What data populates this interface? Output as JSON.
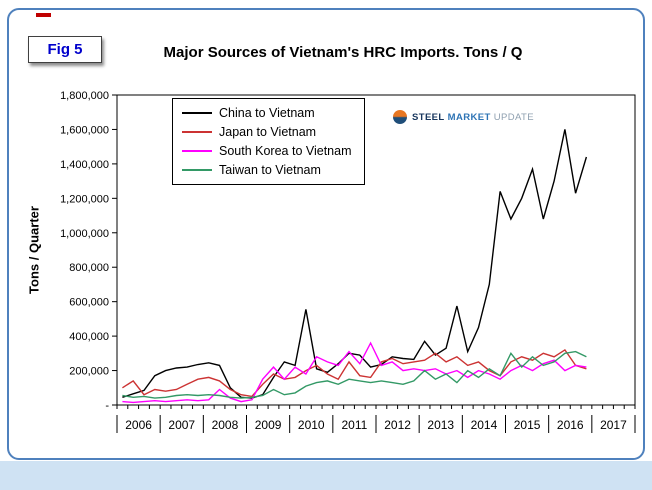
{
  "fig_label": "Fig 5",
  "title": "Major Sources of Vietnam's HRC Imports. Tons / Q",
  "logo": {
    "steel": "STEEL",
    "market": "MARKET",
    "update": "UPDATE"
  },
  "frame": {
    "border_color": "#4f81bd",
    "bottom_band_color": "#cfe2f3",
    "fig_label_color": "#0000cc",
    "red_dash_color": "#c00000"
  },
  "chart_data": {
    "type": "line",
    "title": "Major Sources of Vietnam's HRC Imports. Tons / Q",
    "xlabel": "",
    "ylabel": "Tons / Quarter",
    "ylim": [
      0,
      1800000
    ],
    "ytick_step": 200000,
    "ytick_labels": [
      "-",
      "200,000",
      "400,000",
      "600,000",
      "800,000",
      "1,000,000",
      "1,200,000",
      "1,400,000",
      "1,600,000",
      "1,800,000"
    ],
    "x_years": [
      2006,
      2007,
      2008,
      2009,
      2010,
      2011,
      2012,
      2013,
      2014,
      2015,
      2016,
      2017
    ],
    "quarters_per_year": 4,
    "grid": false,
    "legend_position": "top-left",
    "series": [
      {
        "name": "China to Vietnam",
        "color": "#000000",
        "values": [
          45000,
          65000,
          85000,
          170000,
          200000,
          215000,
          220000,
          235000,
          245000,
          230000,
          100000,
          45000,
          40000,
          60000,
          160000,
          250000,
          230000,
          555000,
          210000,
          190000,
          240000,
          300000,
          290000,
          220000,
          235000,
          280000,
          270000,
          265000,
          370000,
          290000,
          330000,
          575000,
          310000,
          450000,
          700000,
          1240000,
          1080000,
          1200000,
          1370000,
          1080000,
          1300000,
          1600000,
          1230000,
          1440000
        ]
      },
      {
        "name": "Japan to Vietnam",
        "color": "#cc3333",
        "values": [
          100000,
          140000,
          60000,
          90000,
          80000,
          90000,
          120000,
          150000,
          160000,
          140000,
          90000,
          60000,
          50000,
          120000,
          180000,
          150000,
          160000,
          200000,
          230000,
          180000,
          150000,
          250000,
          170000,
          160000,
          250000,
          270000,
          240000,
          250000,
          260000,
          300000,
          250000,
          280000,
          230000,
          250000,
          200000,
          170000,
          250000,
          280000,
          260000,
          300000,
          280000,
          320000,
          230000,
          210000
        ]
      },
      {
        "name": "South Korea to Vietnam",
        "color": "#ff00ff",
        "values": [
          20000,
          15000,
          20000,
          25000,
          20000,
          25000,
          30000,
          25000,
          30000,
          90000,
          40000,
          20000,
          30000,
          150000,
          220000,
          150000,
          220000,
          180000,
          280000,
          250000,
          230000,
          310000,
          240000,
          360000,
          230000,
          250000,
          200000,
          210000,
          200000,
          210000,
          180000,
          200000,
          160000,
          200000,
          180000,
          150000,
          200000,
          230000,
          200000,
          240000,
          260000,
          200000,
          230000,
          220000
        ]
      },
      {
        "name": "Taiwan to Vietnam",
        "color": "#339966",
        "values": [
          55000,
          45000,
          50000,
          40000,
          45000,
          55000,
          60000,
          55000,
          60000,
          55000,
          45000,
          40000,
          45000,
          55000,
          90000,
          60000,
          70000,
          110000,
          130000,
          140000,
          120000,
          150000,
          140000,
          130000,
          140000,
          130000,
          120000,
          140000,
          200000,
          150000,
          180000,
          130000,
          200000,
          160000,
          210000,
          170000,
          300000,
          220000,
          280000,
          230000,
          250000,
          300000,
          310000,
          280000
        ]
      }
    ]
  }
}
